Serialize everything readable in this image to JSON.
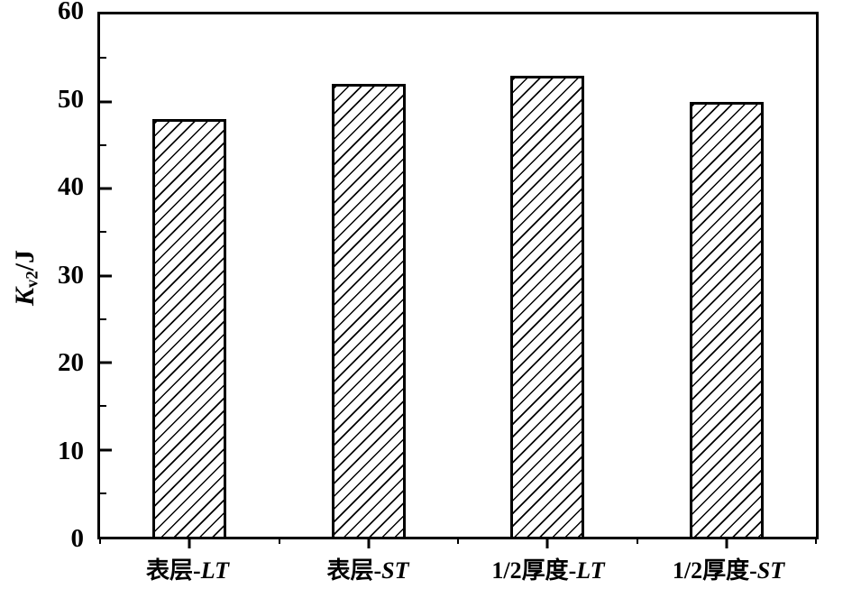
{
  "chart_data": {
    "type": "bar",
    "title": "",
    "xlabel": "",
    "ylabel": "K_v2/J",
    "ylabel_parts": {
      "italic": "K",
      "subscript": "v2",
      "suffix": "/J"
    },
    "categories": [
      {
        "label": "表层-LT",
        "prefix": "表层-",
        "italic": "LT"
      },
      {
        "label": "表层-ST",
        "prefix": "表层-",
        "italic": "ST"
      },
      {
        "label": "1/2厚度-LT",
        "prefix": "1/2厚度-",
        "italic": "LT"
      },
      {
        "label": "1/2厚度-ST",
        "prefix": "1/2厚度-",
        "italic": "ST"
      }
    ],
    "values": [
      48,
      52,
      53,
      50
    ],
    "ylim": [
      0,
      60
    ],
    "yticks_major": [
      0,
      10,
      20,
      30,
      40,
      50,
      60
    ],
    "yticks_minor": [
      5,
      15,
      25,
      35,
      45,
      55
    ],
    "grid": false,
    "legend": null,
    "bar_style": "white fill with forward-diagonal black hatching",
    "frame": "full box, left ticks inward, bottom ticks outward",
    "colors": {
      "axis": "#000000",
      "background": "#ffffff",
      "bar_fill": "#ffffff",
      "hatch_line": "#000000"
    }
  }
}
